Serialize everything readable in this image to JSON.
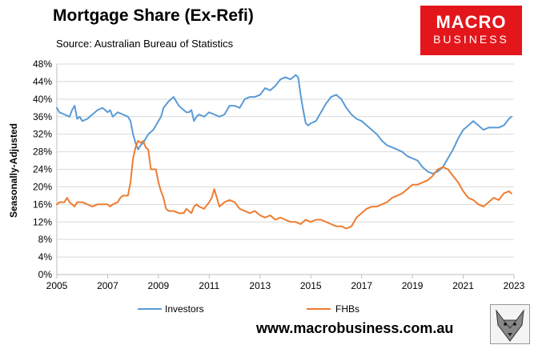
{
  "title": "Mortgage Share (Ex-Refi)",
  "source": "Source: Australian Bureau of Statistics",
  "logo": {
    "line1": "MACRO",
    "line2": "BUSINESS"
  },
  "website": "www.macrobusiness.com.au",
  "colors": {
    "investors": "#5b9bd5",
    "fhbs": "#ed7d31",
    "logo": "#e3161b",
    "grid": "#d9d9d9"
  },
  "icons": {
    "mascot": "wolf-icon"
  },
  "chart_data": {
    "type": "line",
    "title": "Mortgage Share (Ex-Refi)",
    "ylabel": "Seasonally-Adjusted",
    "xlabel": "",
    "xlim": [
      2005,
      2023
    ],
    "ylim": [
      0,
      48
    ],
    "x_ticks": [
      2005,
      2007,
      2009,
      2011,
      2013,
      2015,
      2017,
      2019,
      2021,
      2023
    ],
    "y_ticks": [
      0,
      4,
      8,
      12,
      16,
      20,
      24,
      28,
      32,
      36,
      40,
      44,
      48
    ],
    "y_tick_labels": [
      "0%",
      "4%",
      "8%",
      "12%",
      "16%",
      "20%",
      "24%",
      "28%",
      "32%",
      "36%",
      "40%",
      "44%",
      "48%"
    ],
    "grid": "horizontal",
    "legend": "bottom",
    "series": [
      {
        "name": "Investors",
        "x": [
          2005.0,
          2005.1,
          2005.3,
          2005.5,
          2005.6,
          2005.7,
          2005.8,
          2005.9,
          2006.0,
          2006.2,
          2006.4,
          2006.6,
          2006.8,
          2007.0,
          2007.1,
          2007.2,
          2007.4,
          2007.6,
          2007.8,
          2007.9,
          2008.0,
          2008.1,
          2008.2,
          2008.3,
          2008.4,
          2008.5,
          2008.6,
          2008.7,
          2008.8,
          2008.9,
          2009.0,
          2009.1,
          2009.2,
          2009.4,
          2009.6,
          2009.8,
          2010.0,
          2010.1,
          2010.2,
          2010.3,
          2010.4,
          2010.5,
          2010.6,
          2010.8,
          2011.0,
          2011.2,
          2011.4,
          2011.6,
          2011.8,
          2012.0,
          2012.2,
          2012.4,
          2012.6,
          2012.8,
          2013.0,
          2013.2,
          2013.4,
          2013.6,
          2013.8,
          2014.0,
          2014.2,
          2014.4,
          2014.5,
          2014.6,
          2014.7,
          2014.8,
          2014.9,
          2015.0,
          2015.2,
          2015.4,
          2015.6,
          2015.8,
          2016.0,
          2016.1,
          2016.2,
          2016.4,
          2016.6,
          2016.8,
          2017.0,
          2017.2,
          2017.4,
          2017.6,
          2017.8,
          2018.0,
          2018.2,
          2018.4,
          2018.6,
          2018.8,
          2019.0,
          2019.2,
          2019.4,
          2019.6,
          2019.8,
          2020.0,
          2020.2,
          2020.4,
          2020.6,
          2020.8,
          2021.0,
          2021.2,
          2021.4,
          2021.6,
          2021.8,
          2022.0,
          2022.2,
          2022.4,
          2022.6,
          2022.8,
          2022.9
        ],
        "values": [
          38.0,
          37.0,
          36.5,
          36.0,
          37.5,
          38.5,
          35.5,
          36.0,
          35.0,
          35.5,
          36.5,
          37.5,
          38.0,
          37.0,
          37.5,
          36.0,
          37.0,
          36.5,
          36.0,
          35.0,
          32.0,
          30.0,
          28.5,
          29.5,
          30.0,
          31.0,
          32.0,
          32.5,
          33.0,
          34.0,
          35.0,
          36.0,
          38.0,
          39.5,
          40.5,
          38.5,
          37.5,
          37.0,
          37.0,
          37.5,
          35.0,
          36.0,
          36.5,
          36.0,
          37.0,
          36.5,
          36.0,
          36.5,
          38.5,
          38.5,
          38.0,
          40.0,
          40.5,
          40.5,
          41.0,
          42.5,
          42.0,
          43.0,
          44.5,
          45.0,
          44.5,
          45.5,
          45.0,
          41.0,
          37.5,
          34.5,
          34.0,
          34.5,
          35.0,
          37.0,
          39.0,
          40.5,
          41.0,
          40.5,
          40.0,
          38.0,
          36.5,
          35.5,
          35.0,
          34.0,
          33.0,
          32.0,
          30.5,
          29.5,
          29.0,
          28.5,
          28.0,
          27.0,
          26.5,
          26.0,
          24.5,
          23.5,
          23.0,
          23.5,
          24.5,
          26.5,
          28.5,
          31.0,
          33.0,
          34.0,
          35.0,
          34.0,
          33.0,
          33.5,
          33.5,
          33.5,
          34.0,
          35.5,
          36.0
        ]
      },
      {
        "name": "FHBs",
        "x": [
          2005.0,
          2005.1,
          2005.3,
          2005.4,
          2005.5,
          2005.6,
          2005.7,
          2005.8,
          2005.9,
          2006.0,
          2006.2,
          2006.4,
          2006.6,
          2006.8,
          2007.0,
          2007.1,
          2007.2,
          2007.4,
          2007.5,
          2007.6,
          2007.8,
          2007.9,
          2008.0,
          2008.1,
          2008.2,
          2008.3,
          2008.4,
          2008.5,
          2008.6,
          2008.7,
          2008.8,
          2008.9,
          2009.0,
          2009.1,
          2009.2,
          2009.3,
          2009.4,
          2009.6,
          2009.8,
          2010.0,
          2010.1,
          2010.2,
          2010.3,
          2010.4,
          2010.5,
          2010.6,
          2010.8,
          2011.0,
          2011.1,
          2011.2,
          2011.4,
          2011.6,
          2011.8,
          2012.0,
          2012.2,
          2012.4,
          2012.6,
          2012.8,
          2013.0,
          2013.2,
          2013.4,
          2013.6,
          2013.8,
          2014.0,
          2014.2,
          2014.4,
          2014.6,
          2014.8,
          2015.0,
          2015.2,
          2015.4,
          2015.6,
          2015.8,
          2016.0,
          2016.2,
          2016.4,
          2016.6,
          2016.8,
          2017.0,
          2017.2,
          2017.4,
          2017.6,
          2017.8,
          2018.0,
          2018.2,
          2018.4,
          2018.6,
          2018.8,
          2019.0,
          2019.2,
          2019.4,
          2019.6,
          2019.8,
          2020.0,
          2020.2,
          2020.4,
          2020.6,
          2020.8,
          2021.0,
          2021.2,
          2021.4,
          2021.6,
          2021.8,
          2022.0,
          2022.2,
          2022.4,
          2022.6,
          2022.8,
          2022.9
        ],
        "values": [
          16.0,
          16.5,
          16.5,
          17.5,
          16.5,
          16.0,
          15.5,
          16.5,
          16.5,
          16.5,
          16.0,
          15.5,
          16.0,
          16.0,
          16.0,
          15.5,
          16.0,
          16.5,
          17.5,
          18.0,
          18.0,
          21.0,
          26.5,
          29.0,
          30.5,
          30.0,
          30.5,
          29.0,
          28.5,
          24.0,
          24.0,
          24.0,
          21.0,
          19.0,
          17.5,
          15.0,
          14.5,
          14.5,
          14.0,
          14.0,
          15.0,
          14.5,
          14.0,
          15.5,
          16.0,
          15.5,
          15.0,
          16.5,
          17.5,
          19.5,
          15.5,
          16.5,
          17.0,
          16.5,
          15.0,
          14.5,
          14.0,
          14.5,
          13.5,
          13.0,
          13.5,
          12.5,
          13.0,
          12.5,
          12.0,
          12.0,
          11.5,
          12.5,
          12.0,
          12.5,
          12.5,
          12.0,
          11.5,
          11.0,
          11.0,
          10.5,
          11.0,
          13.0,
          14.0,
          15.0,
          15.5,
          15.5,
          16.0,
          16.5,
          17.5,
          18.0,
          18.5,
          19.5,
          20.5,
          20.5,
          21.0,
          21.5,
          22.5,
          24.0,
          24.5,
          24.0,
          22.5,
          21.0,
          19.0,
          17.5,
          17.0,
          16.0,
          15.5,
          16.5,
          17.5,
          17.0,
          18.5,
          19.0,
          18.5
        ]
      }
    ]
  }
}
